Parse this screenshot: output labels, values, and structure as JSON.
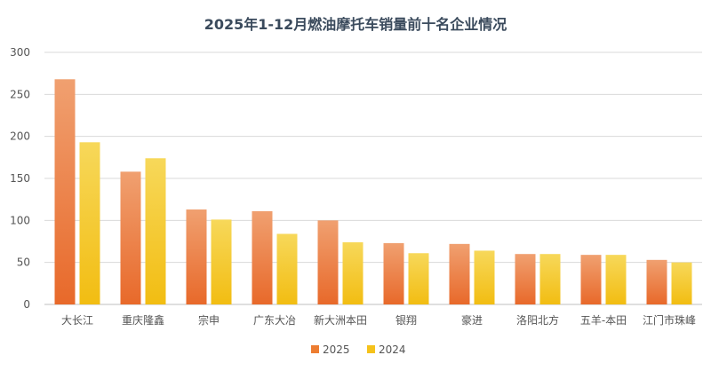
{
  "chart_data": {
    "type": "bar",
    "title": "2025年1-12月燃油摩托车销量前十名企业情况",
    "xlabel": "",
    "ylabel": "",
    "ylim": [
      0,
      300
    ],
    "yticks": [
      0,
      50,
      100,
      150,
      200,
      250,
      300
    ],
    "grid": true,
    "legend_position": "bottom",
    "categories": [
      "大长江",
      "重庆隆鑫",
      "宗申",
      "广东大冶",
      "新大洲本田",
      "银翔",
      "豪进",
      "洛阳北方",
      "五羊-本田",
      "江门市珠峰"
    ],
    "series": [
      {
        "name": "2025",
        "color": "#ed7d31",
        "values": [
          268,
          158,
          113,
          111,
          100,
          73,
          72,
          60,
          59,
          53
        ]
      },
      {
        "name": "2024",
        "color": "#f5c21b",
        "values": [
          193,
          174,
          101,
          84,
          74,
          61,
          64,
          60,
          59,
          50
        ]
      }
    ]
  }
}
